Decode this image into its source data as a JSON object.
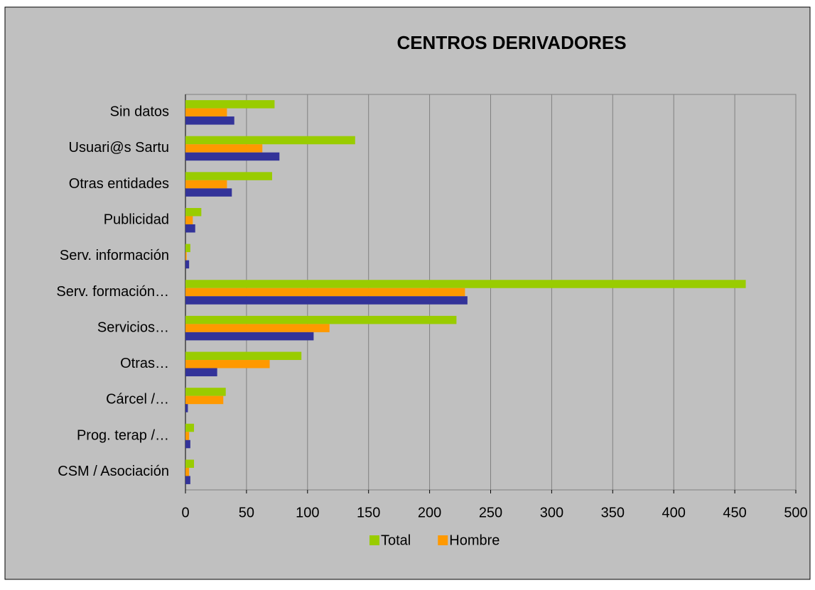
{
  "chart_data": {
    "type": "hbar",
    "title": "CENTROS DERIVADORES",
    "categories": [
      "Sin datos",
      "Usuari@s Sartu",
      "Otras entidades",
      "Publicidad",
      "Serv. información",
      "Serv. formación…",
      "Servicios…",
      "Otras…",
      "Cárcel /…",
      "Prog. terap /…",
      "CSM / Asociación"
    ],
    "series": [
      {
        "name": "Total",
        "color": "#99cc00",
        "values": [
          73,
          139,
          71,
          13,
          4,
          459,
          222,
          95,
          33,
          7,
          7
        ]
      },
      {
        "name": "Hombre",
        "color": "#ff9900",
        "values": [
          34,
          63,
          34,
          6,
          1,
          229,
          118,
          69,
          31,
          3,
          3
        ]
      },
      {
        "color": "#333399",
        "values": [
          40,
          77,
          38,
          8,
          3,
          231,
          105,
          26,
          2,
          4,
          4
        ]
      }
    ],
    "xlim": [
      0,
      500
    ],
    "xticks": [
      0,
      50,
      100,
      150,
      200,
      250,
      300,
      350,
      400,
      450,
      500
    ],
    "grid": true,
    "legend": "bottom"
  }
}
